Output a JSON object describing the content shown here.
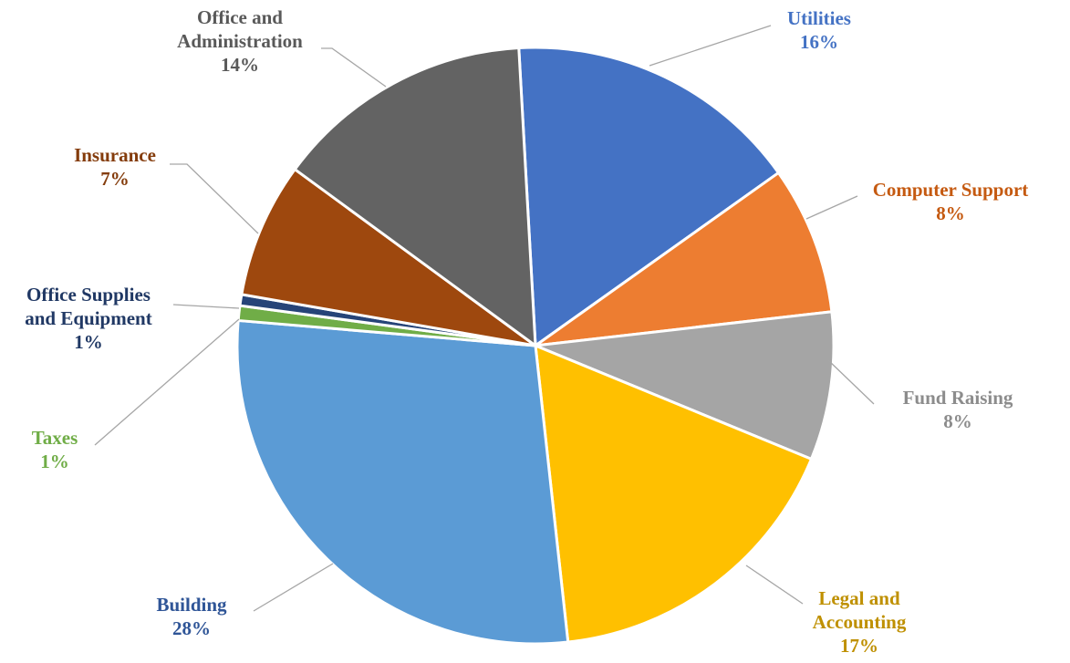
{
  "chart_data": {
    "type": "pie",
    "title": "",
    "series": [
      {
        "values": [
          16,
          8,
          8,
          17,
          28,
          1,
          1,
          7,
          14
        ],
        "categories": [
          "Utilities",
          "Computer Support",
          "Fund Raising",
          "Legal and Accounting",
          "Building",
          "Taxes",
          "Office Supplies and Equipment",
          "Insurance",
          "Office and Administration"
        ]
      }
    ],
    "slices": [
      {
        "label_lines": [
          "Utilities"
        ],
        "pct": "16%",
        "value": 16,
        "color": "#4472c4",
        "label_color": "#4472c4"
      },
      {
        "label_lines": [
          "Computer Support"
        ],
        "pct": "8%",
        "value": 8,
        "color": "#ed7d31",
        "label_color": "#c55a11"
      },
      {
        "label_lines": [
          "Fund Raising"
        ],
        "pct": "8%",
        "value": 8,
        "color": "#a5a5a5",
        "label_color": "#8c8c8c"
      },
      {
        "label_lines": [
          "Legal and",
          "Accounting"
        ],
        "pct": "17%",
        "value": 17,
        "color": "#ffc000",
        "label_color": "#bf9000"
      },
      {
        "label_lines": [
          "Building"
        ],
        "pct": "28%",
        "value": 28,
        "color": "#5b9bd5",
        "label_color": "#2f5597"
      },
      {
        "label_lines": [
          "Taxes"
        ],
        "pct": "1%",
        "value": 0.8,
        "color": "#70ad47",
        "label_color": "#70ad47"
      },
      {
        "label_lines": [
          "Office Supplies",
          "and Equipment"
        ],
        "pct": "1%",
        "value": 0.6,
        "color": "#264478",
        "label_color": "#203864"
      },
      {
        "label_lines": [
          "Insurance"
        ],
        "pct": "7%",
        "value": 7.3,
        "color": "#9e480e",
        "label_color": "#843c0c"
      },
      {
        "label_lines": [
          "Office and",
          "Administration"
        ],
        "pct": "14%",
        "value": 14,
        "color": "#636363",
        "label_color": "#595959"
      }
    ],
    "legend": "none"
  }
}
